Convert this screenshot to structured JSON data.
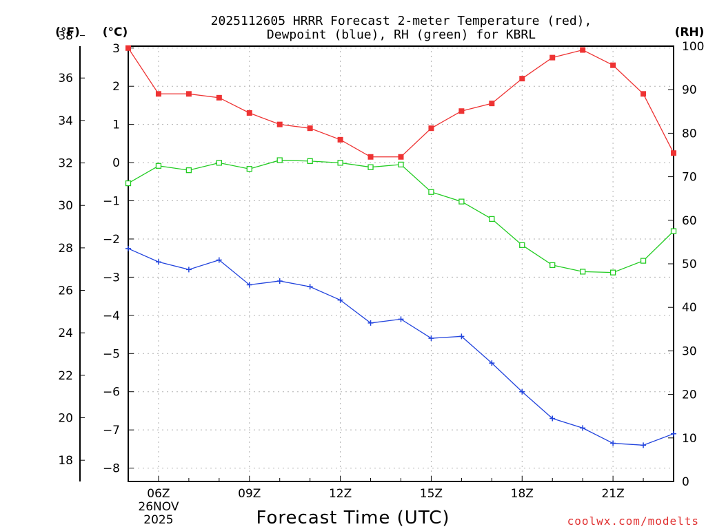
{
  "chart_data": {
    "type": "line",
    "title_line1": "2025112605 HRRR Forecast 2-meter Temperature (red),",
    "title_line2": "Dewpoint (blue), RH (green) for KBRL",
    "xlabel": "Forecast Time (UTC)",
    "credit": "coolwx.com/modelts",
    "units": {
      "fahrenheit": "(°F)",
      "celsius": "(°C)",
      "rh": "(RH)"
    },
    "x_hours_utc": [
      5,
      6,
      7,
      8,
      9,
      10,
      11,
      12,
      13,
      14,
      15,
      16,
      17,
      18,
      19,
      20,
      21,
      22,
      23
    ],
    "x_ticks": [
      {
        "hour": 6,
        "label": "06Z",
        "date_line1": "26NOV",
        "date_line2": "2025"
      },
      {
        "hour": 9,
        "label": "09Z"
      },
      {
        "hour": 12,
        "label": "12Z"
      },
      {
        "hour": 15,
        "label": "15Z"
      },
      {
        "hour": 18,
        "label": "18Z"
      },
      {
        "hour": 21,
        "label": "21Z"
      }
    ],
    "xlim": [
      5,
      23
    ],
    "celsius_axis": {
      "ylim": [
        -8.35,
        3.05
      ],
      "ticks": [
        3,
        2,
        1,
        0,
        -1,
        -2,
        -3,
        -4,
        -5,
        -6,
        -7,
        -8
      ]
    },
    "fahrenheit_axis": {
      "ylim": [
        17.0,
        37.5
      ],
      "ticks": [
        38,
        36,
        34,
        32,
        30,
        28,
        26,
        24,
        22,
        20,
        18
      ]
    },
    "rh_axis": {
      "ylim": [
        0,
        100
      ],
      "ticks": [
        100,
        90,
        80,
        70,
        60,
        50,
        40,
        30,
        20,
        10,
        0
      ]
    },
    "series": [
      {
        "name": "Temperature",
        "unit": "C",
        "color": "#ee3333",
        "marker": "filled-square",
        "values": [
          3.0,
          1.8,
          1.8,
          1.7,
          1.3,
          1.0,
          0.9,
          0.6,
          0.15,
          0.15,
          0.9,
          1.35,
          1.55,
          2.2,
          2.75,
          2.95,
          2.55,
          1.8,
          0.25
        ]
      },
      {
        "name": "Dewpoint",
        "unit": "C",
        "color": "#2244dd",
        "marker": "plus",
        "values": [
          -2.25,
          -2.6,
          -2.8,
          -2.55,
          -3.2,
          -3.1,
          -3.25,
          -3.6,
          -4.2,
          -4.1,
          -4.6,
          -4.55,
          -5.25,
          -6.0,
          -6.7,
          -6.95,
          -7.35,
          -7.4,
          -7.1
        ]
      },
      {
        "name": "RH",
        "unit": "%",
        "color": "#22cc22",
        "marker": "open-square",
        "values": [
          68.5,
          72.5,
          71.5,
          73.2,
          71.8,
          73.8,
          73.6,
          73.2,
          72.2,
          72.8,
          66.5,
          64.3,
          60.3,
          54.3,
          49.7,
          48.2,
          48.0,
          50.7,
          57.5
        ]
      }
    ],
    "grid": true
  }
}
